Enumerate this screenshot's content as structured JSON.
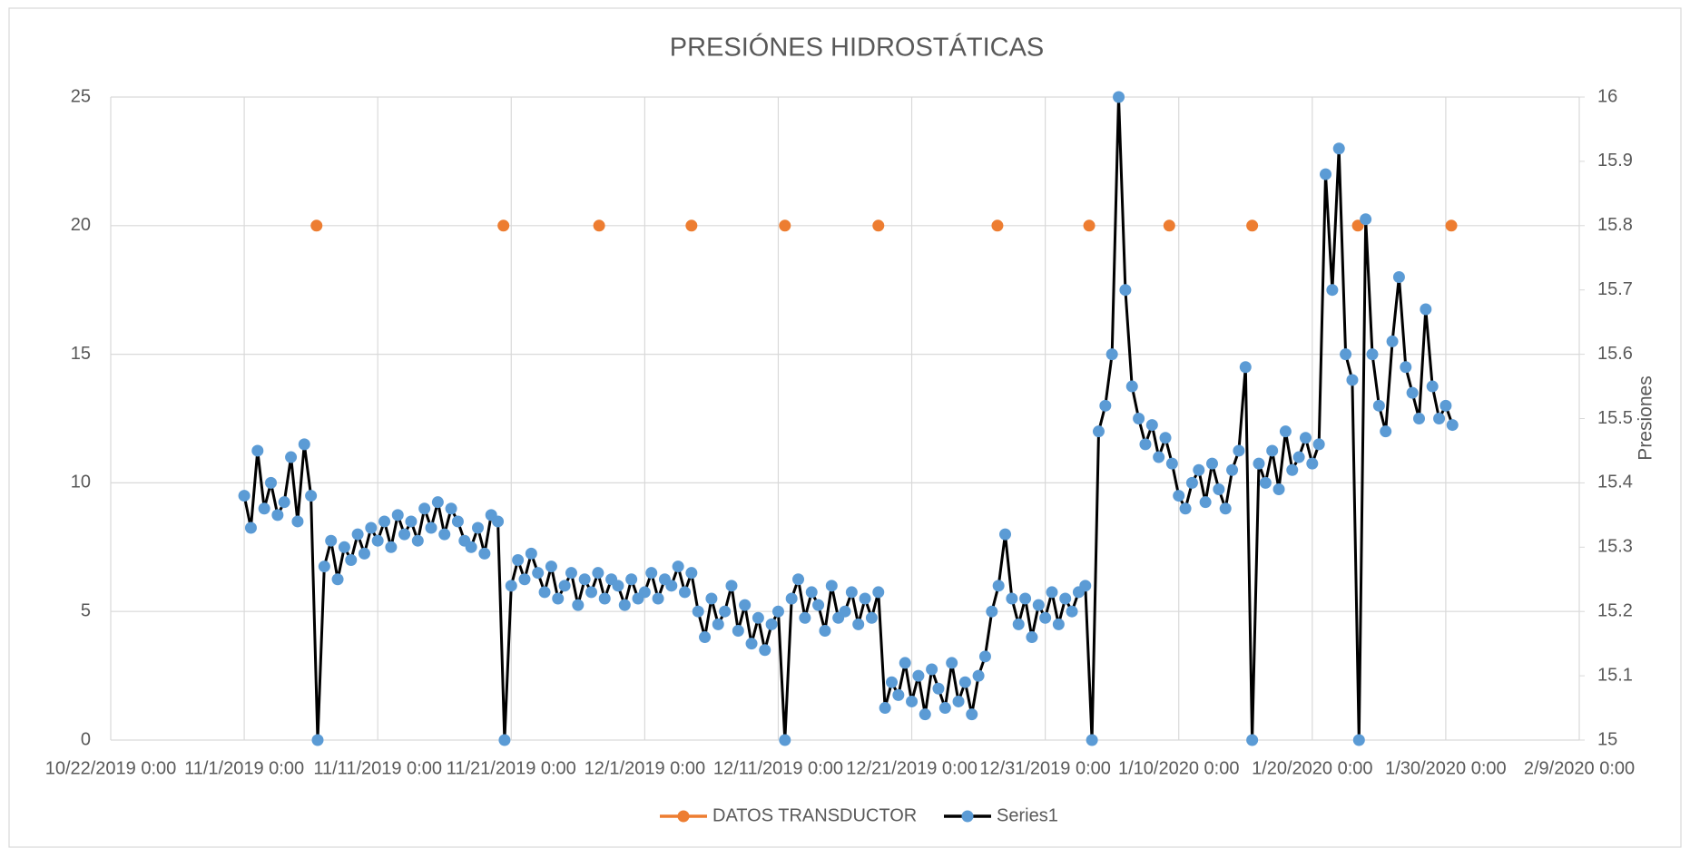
{
  "chart_data": {
    "type": "line",
    "title": "PRESIÓNES HIDROSTÁTICAS",
    "y2label": "Presiones",
    "xlim": [
      "2019-10-22",
      "2020-02-09"
    ],
    "xticks": [
      {
        "value": "2019-10-22",
        "label": "10/22/2019 0:00"
      },
      {
        "value": "2019-11-01",
        "label": "11/1/2019 0:00"
      },
      {
        "value": "2019-11-11",
        "label": "11/11/2019 0:00"
      },
      {
        "value": "2019-11-21",
        "label": "11/21/2019 0:00"
      },
      {
        "value": "2019-12-01",
        "label": "12/1/2019 0:00"
      },
      {
        "value": "2019-12-11",
        "label": "12/11/2019 0:00"
      },
      {
        "value": "2019-12-21",
        "label": "12/21/2019 0:00"
      },
      {
        "value": "2019-12-31",
        "label": "12/31/2019 0:00"
      },
      {
        "value": "2020-01-10",
        "label": "1/10/2020 0:00"
      },
      {
        "value": "2020-01-20",
        "label": "1/20/2020 0:00"
      },
      {
        "value": "2020-01-30",
        "label": "1/30/2020 0:00"
      },
      {
        "value": "2020-02-09",
        "label": "2/9/2020 0:00"
      }
    ],
    "ylim": [
      0,
      25
    ],
    "yticks": [
      0,
      5,
      10,
      15,
      20,
      25
    ],
    "y2lim": [
      15,
      16
    ],
    "y2ticks": [
      15,
      15.1,
      15.2,
      15.3,
      15.4,
      15.5,
      15.6,
      15.7,
      15.8,
      15.9,
      16
    ],
    "grid": true,
    "legend": "bottom",
    "series": [
      {
        "name": "DATOS TRANSDUCTOR",
        "color": "#ed7d31",
        "line": false,
        "x": [
          "2019-11-06 10:00",
          "2019-11-20 10:00",
          "2019-11-27 14:00",
          "2019-12-04 12:00",
          "2019-12-11 12:00",
          "2019-12-18 12:00",
          "2019-12-27 10:00",
          "2020-01-03 07:00",
          "2020-01-09 07:00",
          "2020-01-15 12:00",
          "2020-01-23 10:00",
          "2020-01-30 10:00"
        ],
        "values": [
          20,
          20,
          20,
          20,
          20,
          20,
          20,
          20,
          20,
          20,
          20,
          20
        ]
      },
      {
        "name": "Series1",
        "color": "#5b9bd5",
        "line_color": "#000000",
        "line": true,
        "axis": "y2",
        "x": [
          "2019-11-01 00:00",
          "2019-11-01 12:00",
          "2019-11-02 00:00",
          "2019-11-02 12:00",
          "2019-11-03 00:00",
          "2019-11-03 12:00",
          "2019-11-04 00:00",
          "2019-11-04 12:00",
          "2019-11-05 00:00",
          "2019-11-05 12:00",
          "2019-11-06 00:00",
          "2019-11-06 12:00",
          "2019-11-07 00:00",
          "2019-11-07 12:00",
          "2019-11-08 00:00",
          "2019-11-08 12:00",
          "2019-11-09 00:00",
          "2019-11-09 12:00",
          "2019-11-10 00:00",
          "2019-11-10 12:00",
          "2019-11-11 00:00",
          "2019-11-11 12:00",
          "2019-11-12 00:00",
          "2019-11-12 12:00",
          "2019-11-13 00:00",
          "2019-11-13 12:00",
          "2019-11-14 00:00",
          "2019-11-14 12:00",
          "2019-11-15 00:00",
          "2019-11-15 12:00",
          "2019-11-16 00:00",
          "2019-11-16 12:00",
          "2019-11-17 00:00",
          "2019-11-17 12:00",
          "2019-11-18 00:00",
          "2019-11-18 12:00",
          "2019-11-19 00:00",
          "2019-11-19 12:00",
          "2019-11-20 00:00",
          "2019-11-20 12:00",
          "2019-11-21 00:00",
          "2019-11-21 12:00",
          "2019-11-22 00:00",
          "2019-11-22 12:00",
          "2019-11-23 00:00",
          "2019-11-23 12:00",
          "2019-11-24 00:00",
          "2019-11-24 12:00",
          "2019-11-25 00:00",
          "2019-11-25 12:00",
          "2019-11-26 00:00",
          "2019-11-26 12:00",
          "2019-11-27 00:00",
          "2019-11-27 12:00",
          "2019-11-28 00:00",
          "2019-11-28 12:00",
          "2019-11-29 00:00",
          "2019-11-29 12:00",
          "2019-11-30 00:00",
          "2019-11-30 12:00",
          "2019-12-01 00:00",
          "2019-12-01 12:00",
          "2019-12-02 00:00",
          "2019-12-02 12:00",
          "2019-12-03 00:00",
          "2019-12-03 12:00",
          "2019-12-04 00:00",
          "2019-12-04 12:00",
          "2019-12-05 00:00",
          "2019-12-05 12:00",
          "2019-12-06 00:00",
          "2019-12-06 12:00",
          "2019-12-07 00:00",
          "2019-12-07 12:00",
          "2019-12-08 00:00",
          "2019-12-08 12:00",
          "2019-12-09 00:00",
          "2019-12-09 12:00",
          "2019-12-10 00:00",
          "2019-12-10 12:00",
          "2019-12-11 00:00",
          "2019-12-11 12:00",
          "2019-12-12 00:00",
          "2019-12-12 12:00",
          "2019-12-13 00:00",
          "2019-12-13 12:00",
          "2019-12-14 00:00",
          "2019-12-14 12:00",
          "2019-12-15 00:00",
          "2019-12-15 12:00",
          "2019-12-16 00:00",
          "2019-12-16 12:00",
          "2019-12-17 00:00",
          "2019-12-17 12:00",
          "2019-12-18 00:00",
          "2019-12-18 12:00",
          "2019-12-19 00:00",
          "2019-12-19 12:00",
          "2019-12-20 00:00",
          "2019-12-20 12:00",
          "2019-12-21 00:00",
          "2019-12-21 12:00",
          "2019-12-22 00:00",
          "2019-12-22 12:00",
          "2019-12-23 00:00",
          "2019-12-23 12:00",
          "2019-12-24 00:00",
          "2019-12-24 12:00",
          "2019-12-25 00:00",
          "2019-12-25 12:00",
          "2019-12-26 00:00",
          "2019-12-26 12:00",
          "2019-12-27 00:00",
          "2019-12-27 12:00",
          "2019-12-28 00:00",
          "2019-12-28 12:00",
          "2019-12-29 00:00",
          "2019-12-29 12:00",
          "2019-12-30 00:00",
          "2019-12-30 12:00",
          "2019-12-31 00:00",
          "2019-12-31 12:00",
          "2020-01-01 00:00",
          "2020-01-01 12:00",
          "2020-01-02 00:00",
          "2020-01-02 12:00",
          "2020-01-03 00:00",
          "2020-01-03 12:00",
          "2020-01-04 00:00",
          "2020-01-04 12:00",
          "2020-01-05 00:00",
          "2020-01-05 12:00",
          "2020-01-06 00:00",
          "2020-01-06 12:00",
          "2020-01-07 00:00",
          "2020-01-07 12:00",
          "2020-01-08 00:00",
          "2020-01-08 12:00",
          "2020-01-09 00:00",
          "2020-01-09 12:00",
          "2020-01-10 00:00",
          "2020-01-10 12:00",
          "2020-01-11 00:00",
          "2020-01-11 12:00",
          "2020-01-12 00:00",
          "2020-01-12 12:00",
          "2020-01-13 00:00",
          "2020-01-13 12:00",
          "2020-01-14 00:00",
          "2020-01-14 12:00",
          "2020-01-15 00:00",
          "2020-01-15 12:00",
          "2020-01-16 00:00",
          "2020-01-16 12:00",
          "2020-01-17 00:00",
          "2020-01-17 12:00",
          "2020-01-18 00:00",
          "2020-01-18 12:00",
          "2020-01-19 00:00",
          "2020-01-19 12:00",
          "2020-01-20 00:00",
          "2020-01-20 12:00",
          "2020-01-21 00:00",
          "2020-01-21 12:00",
          "2020-01-22 00:00",
          "2020-01-22 12:00",
          "2020-01-23 00:00",
          "2020-01-23 12:00",
          "2020-01-24 00:00",
          "2020-01-24 12:00",
          "2020-01-25 00:00",
          "2020-01-25 12:00",
          "2020-01-26 00:00",
          "2020-01-26 12:00",
          "2020-01-27 00:00",
          "2020-01-27 12:00",
          "2020-01-28 00:00",
          "2020-01-28 12:00",
          "2020-01-29 00:00",
          "2020-01-29 12:00",
          "2020-01-30 00:00",
          "2020-01-30 12:00"
        ],
        "values": [
          15.38,
          15.33,
          15.45,
          15.36,
          15.4,
          15.35,
          15.37,
          15.44,
          15.34,
          15.46,
          15.38,
          15.0,
          15.27,
          15.31,
          15.25,
          15.3,
          15.28,
          15.32,
          15.29,
          15.33,
          15.31,
          15.34,
          15.3,
          15.35,
          15.32,
          15.34,
          15.31,
          15.36,
          15.33,
          15.37,
          15.32,
          15.36,
          15.34,
          15.31,
          15.3,
          15.33,
          15.29,
          15.35,
          15.34,
          15.0,
          15.24,
          15.28,
          15.25,
          15.29,
          15.26,
          15.23,
          15.27,
          15.22,
          15.24,
          15.26,
          15.21,
          15.25,
          15.23,
          15.26,
          15.22,
          15.25,
          15.24,
          15.21,
          15.25,
          15.22,
          15.23,
          15.26,
          15.22,
          15.25,
          15.24,
          15.27,
          15.23,
          15.26,
          15.2,
          15.16,
          15.22,
          15.18,
          15.2,
          15.24,
          15.17,
          15.21,
          15.15,
          15.19,
          15.14,
          15.18,
          15.2,
          15.0,
          15.22,
          15.25,
          15.19,
          15.23,
          15.21,
          15.17,
          15.24,
          15.19,
          15.2,
          15.23,
          15.18,
          15.22,
          15.19,
          15.23,
          15.05,
          15.09,
          15.07,
          15.12,
          15.06,
          15.1,
          15.04,
          15.11,
          15.08,
          15.05,
          15.12,
          15.06,
          15.09,
          15.04,
          15.1,
          15.13,
          15.2,
          15.24,
          15.32,
          15.22,
          15.18,
          15.22,
          15.16,
          15.21,
          15.19,
          15.23,
          15.18,
          15.22,
          15.2,
          15.23,
          15.24,
          15.0,
          15.48,
          15.52,
          15.6,
          16.0,
          15.7,
          15.55,
          15.5,
          15.46,
          15.49,
          15.44,
          15.47,
          15.43,
          15.38,
          15.36,
          15.4,
          15.42,
          15.37,
          15.43,
          15.39,
          15.36,
          15.42,
          15.45,
          15.58,
          15.0,
          15.43,
          15.4,
          15.45,
          15.39,
          15.48,
          15.42,
          15.44,
          15.47,
          15.43,
          15.46,
          15.88,
          15.7,
          15.92,
          15.6,
          15.56,
          15.0,
          15.81,
          15.6,
          15.52,
          15.48,
          15.62,
          15.72,
          15.58,
          15.54,
          15.5,
          15.67,
          15.55,
          15.5,
          15.52,
          15.49
        ]
      }
    ]
  }
}
